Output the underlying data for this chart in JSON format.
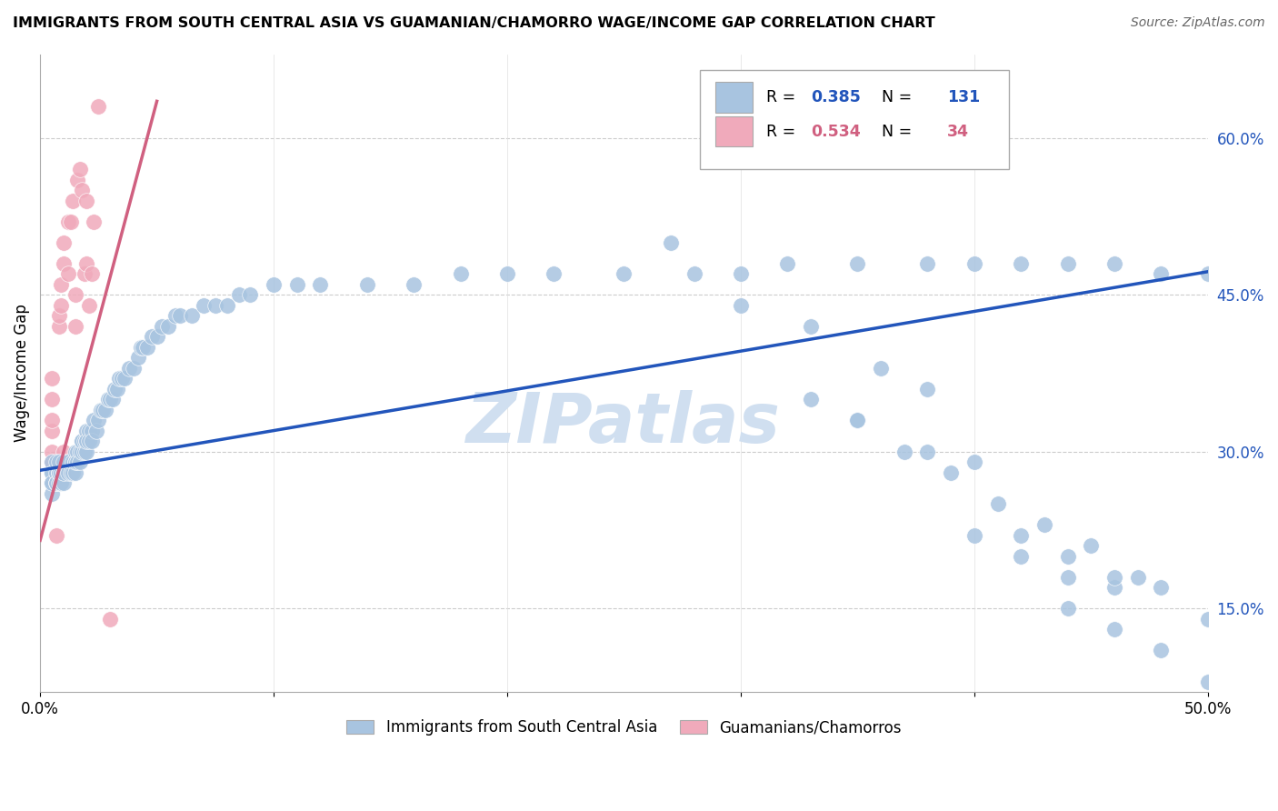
{
  "title": "IMMIGRANTS FROM SOUTH CENTRAL ASIA VS GUAMANIAN/CHAMORRO WAGE/INCOME GAP CORRELATION CHART",
  "source": "Source: ZipAtlas.com",
  "ylabel": "Wage/Income Gap",
  "xlim": [
    0.0,
    0.5
  ],
  "ylim": [
    0.07,
    0.68
  ],
  "yticks_right": [
    0.15,
    0.3,
    0.45,
    0.6
  ],
  "ytick_right_labels": [
    "15.0%",
    "30.0%",
    "45.0%",
    "60.0%"
  ],
  "blue_R": "0.385",
  "blue_N": "131",
  "pink_R": "0.534",
  "pink_N": "34",
  "blue_color": "#a8c4e0",
  "pink_color": "#f0aabb",
  "blue_line_color": "#2255bb",
  "pink_line_color": "#d06080",
  "watermark_color": "#d0dff0",
  "grid_color": "#cccccc",
  "blue_line_x0": 0.0,
  "blue_line_y0": 0.282,
  "blue_line_x1": 0.5,
  "blue_line_y1": 0.472,
  "pink_line_x0": 0.0,
  "pink_line_x1": 0.05,
  "pink_line_y0": 0.215,
  "pink_line_y1": 0.635,
  "blue_x": [
    0.005,
    0.005,
    0.005,
    0.005,
    0.005,
    0.005,
    0.005,
    0.007,
    0.007,
    0.007,
    0.007,
    0.007,
    0.008,
    0.008,
    0.008,
    0.008,
    0.008,
    0.009,
    0.009,
    0.009,
    0.01,
    0.01,
    0.01,
    0.01,
    0.01,
    0.012,
    0.012,
    0.012,
    0.013,
    0.014,
    0.014,
    0.015,
    0.015,
    0.015,
    0.015,
    0.016,
    0.016,
    0.017,
    0.017,
    0.018,
    0.018,
    0.018,
    0.019,
    0.019,
    0.02,
    0.02,
    0.02,
    0.02,
    0.021,
    0.021,
    0.022,
    0.022,
    0.023,
    0.024,
    0.025,
    0.026,
    0.027,
    0.028,
    0.029,
    0.03,
    0.031,
    0.032,
    0.033,
    0.034,
    0.035,
    0.036,
    0.038,
    0.04,
    0.042,
    0.043,
    0.044,
    0.046,
    0.048,
    0.05,
    0.052,
    0.055,
    0.058,
    0.06,
    0.065,
    0.07,
    0.075,
    0.08,
    0.085,
    0.09,
    0.1,
    0.11,
    0.12,
    0.14,
    0.16,
    0.18,
    0.2,
    0.22,
    0.25,
    0.28,
    0.3,
    0.32,
    0.35,
    0.38,
    0.4,
    0.42,
    0.44,
    0.46,
    0.48,
    0.5,
    0.27,
    0.3,
    0.33,
    0.36,
    0.38,
    0.4,
    0.42,
    0.44,
    0.46,
    0.33,
    0.35,
    0.38,
    0.4,
    0.42,
    0.44,
    0.46,
    0.48,
    0.5,
    0.35,
    0.37,
    0.39,
    0.41,
    0.43,
    0.45,
    0.47,
    0.5,
    0.44,
    0.46,
    0.48
  ],
  "blue_y": [
    0.27,
    0.28,
    0.27,
    0.29,
    0.26,
    0.28,
    0.27,
    0.27,
    0.28,
    0.29,
    0.27,
    0.27,
    0.28,
    0.27,
    0.28,
    0.28,
    0.29,
    0.27,
    0.28,
    0.27,
    0.28,
    0.28,
    0.29,
    0.27,
    0.28,
    0.29,
    0.28,
    0.29,
    0.28,
    0.28,
    0.29,
    0.29,
    0.3,
    0.28,
    0.29,
    0.3,
    0.29,
    0.3,
    0.29,
    0.31,
    0.3,
    0.31,
    0.3,
    0.31,
    0.31,
    0.32,
    0.3,
    0.31,
    0.32,
    0.31,
    0.32,
    0.31,
    0.33,
    0.32,
    0.33,
    0.34,
    0.34,
    0.34,
    0.35,
    0.35,
    0.35,
    0.36,
    0.36,
    0.37,
    0.37,
    0.37,
    0.38,
    0.38,
    0.39,
    0.4,
    0.4,
    0.4,
    0.41,
    0.41,
    0.42,
    0.42,
    0.43,
    0.43,
    0.43,
    0.44,
    0.44,
    0.44,
    0.45,
    0.45,
    0.46,
    0.46,
    0.46,
    0.46,
    0.46,
    0.47,
    0.47,
    0.47,
    0.47,
    0.47,
    0.47,
    0.48,
    0.48,
    0.48,
    0.48,
    0.48,
    0.48,
    0.48,
    0.47,
    0.47,
    0.5,
    0.44,
    0.42,
    0.38,
    0.36,
    0.22,
    0.2,
    0.18,
    0.17,
    0.35,
    0.33,
    0.3,
    0.29,
    0.22,
    0.2,
    0.18,
    0.17,
    0.14,
    0.33,
    0.3,
    0.28,
    0.25,
    0.23,
    0.21,
    0.18,
    0.08,
    0.15,
    0.13,
    0.11
  ],
  "pink_x": [
    0.005,
    0.005,
    0.005,
    0.005,
    0.005,
    0.005,
    0.005,
    0.007,
    0.007,
    0.008,
    0.008,
    0.009,
    0.009,
    0.01,
    0.01,
    0.01,
    0.01,
    0.012,
    0.012,
    0.013,
    0.014,
    0.015,
    0.015,
    0.016,
    0.017,
    0.018,
    0.019,
    0.02,
    0.02,
    0.021,
    0.022,
    0.023,
    0.025,
    0.03
  ],
  "pink_y": [
    0.27,
    0.29,
    0.3,
    0.32,
    0.33,
    0.35,
    0.37,
    0.28,
    0.22,
    0.42,
    0.43,
    0.44,
    0.46,
    0.28,
    0.3,
    0.48,
    0.5,
    0.47,
    0.52,
    0.52,
    0.54,
    0.42,
    0.45,
    0.56,
    0.57,
    0.55,
    0.47,
    0.48,
    0.54,
    0.44,
    0.47,
    0.52,
    0.63,
    0.14
  ]
}
